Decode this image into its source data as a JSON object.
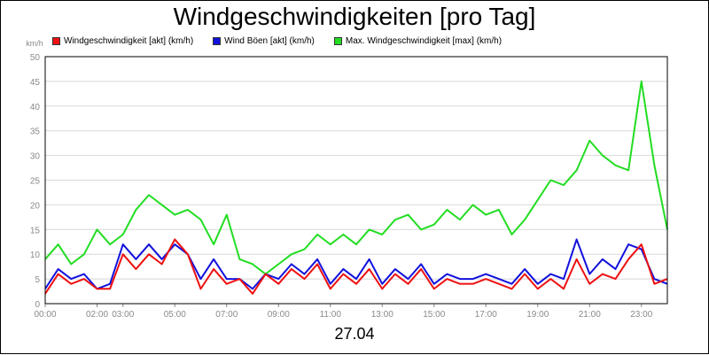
{
  "chart_data": {
    "type": "line",
    "title": "Windgeschwindigkeiten [pro Tag]",
    "xlabel": "27.04",
    "ylabel": "km/h",
    "ylim": [
      0,
      50
    ],
    "y_ticks": [
      "0",
      "5",
      "10",
      "15",
      "20",
      "25",
      "30",
      "35",
      "40",
      "45",
      "50"
    ],
    "x_ticks": [
      {
        "h": 0,
        "label": "00:00"
      },
      {
        "h": 2,
        "label": "02:00"
      },
      {
        "h": 3,
        "label": "03:00"
      },
      {
        "h": 5,
        "label": "05:00"
      },
      {
        "h": 7,
        "label": "07:00"
      },
      {
        "h": 9,
        "label": "09:00"
      },
      {
        "h": 11,
        "label": "11:00"
      },
      {
        "h": 13,
        "label": "13:00"
      },
      {
        "h": 15,
        "label": "15:00"
      },
      {
        "h": 17,
        "label": "17:00"
      },
      {
        "h": 19,
        "label": "19:00"
      },
      {
        "h": 21,
        "label": "21:00"
      },
      {
        "h": 23,
        "label": "23:00"
      }
    ],
    "grid": "horizontal",
    "legend_position": "top-left",
    "x_hours": [
      0,
      0.5,
      1,
      1.5,
      2,
      2.5,
      3,
      3.5,
      4,
      4.5,
      5,
      5.5,
      6,
      6.5,
      7,
      7.5,
      8,
      8.5,
      9,
      9.5,
      10,
      10.5,
      11,
      11.5,
      12,
      12.5,
      13,
      13.5,
      14,
      14.5,
      15,
      15.5,
      16,
      16.5,
      17,
      17.5,
      18,
      18.5,
      19,
      19.5,
      20,
      20.5,
      21,
      21.5,
      22,
      22.5,
      23,
      23.5,
      24
    ],
    "series": [
      {
        "name": "Windgeschwindigkeit [akt] (km/h)",
        "color": "#ee1111",
        "values": [
          2,
          6,
          4,
          5,
          3,
          3,
          10,
          7,
          10,
          8,
          13,
          10,
          3,
          7,
          4,
          5,
          2,
          6,
          4,
          7,
          5,
          8,
          3,
          6,
          4,
          7,
          3,
          6,
          4,
          7,
          3,
          5,
          4,
          4,
          5,
          4,
          3,
          6,
          3,
          5,
          3,
          9,
          4,
          6,
          5,
          9,
          12,
          4,
          5
        ]
      },
      {
        "name": "Wind Böen [akt] (km/h)",
        "color": "#1111dd",
        "values": [
          3,
          7,
          5,
          6,
          3,
          4,
          12,
          9,
          12,
          9,
          12,
          10,
          5,
          9,
          5,
          5,
          3,
          6,
          5,
          8,
          6,
          9,
          4,
          7,
          5,
          9,
          4,
          7,
          5,
          8,
          4,
          6,
          5,
          5,
          6,
          5,
          4,
          7,
          4,
          6,
          5,
          13,
          6,
          9,
          7,
          12,
          11,
          5,
          4
        ]
      }
    ],
    "max_series": {
      "name": "Max. Windgeschwindigkeit [max] (km/h)",
      "color": "#22dd22",
      "values": [
        9,
        12,
        8,
        10,
        15,
        12,
        14,
        19,
        22,
        20,
        18,
        19,
        17,
        12,
        18,
        9,
        8,
        6,
        8,
        10,
        11,
        14,
        12,
        14,
        12,
        15,
        14,
        17,
        18,
        15,
        16,
        19,
        17,
        20,
        18,
        19,
        14,
        17,
        21,
        25,
        24,
        27,
        33,
        30,
        28,
        27,
        45,
        28,
        15
      ]
    }
  }
}
